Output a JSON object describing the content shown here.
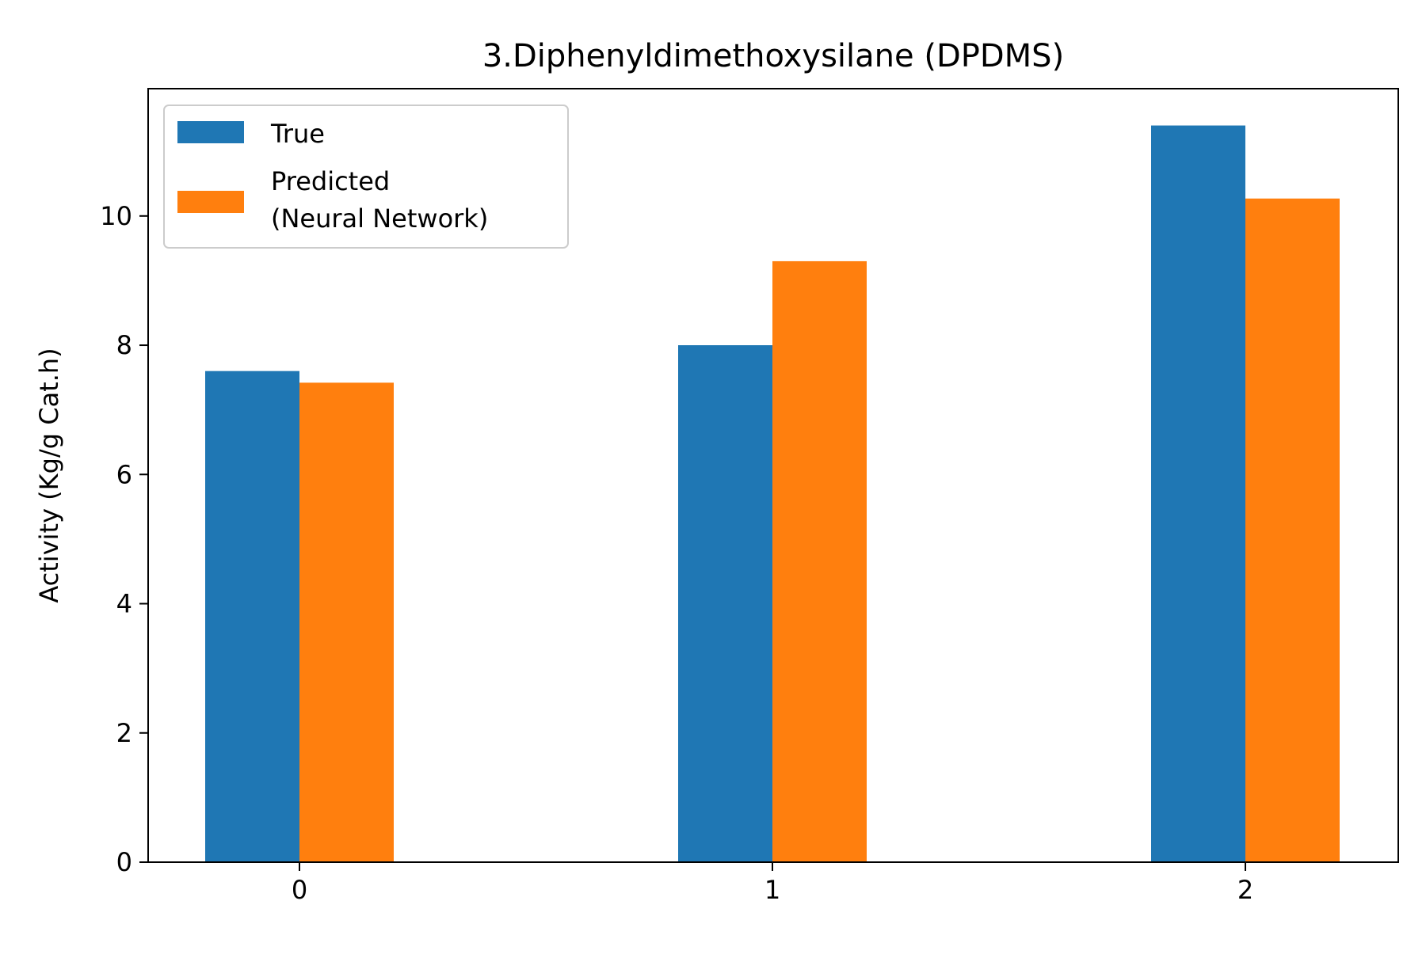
{
  "chart_data": {
    "type": "bar",
    "title": "3.Diphenyldimethoxysilane (DPDMS)",
    "xlabel": "",
    "ylabel": "Activity (Kg/g Cat.h)",
    "categories": [
      "0",
      "1",
      "2"
    ],
    "series": [
      {
        "name": "True",
        "color": "#1f77b4",
        "values": [
          7.6,
          8.0,
          11.4
        ]
      },
      {
        "name": "Predicted\n(Neural Network)",
        "color": "#ff7f0e",
        "values": [
          7.42,
          9.3,
          10.27
        ]
      }
    ],
    "ylim": [
      0,
      11.97
    ],
    "yticks": [
      0,
      2,
      4,
      6,
      8,
      10
    ],
    "grid": false,
    "legend": {
      "placement": "top-left",
      "entries": [
        {
          "lines": [
            "True"
          ],
          "color": "#1f77b4"
        },
        {
          "lines": [
            "Predicted",
            "(Neural Network)"
          ],
          "color": "#ff7f0e"
        }
      ]
    }
  }
}
